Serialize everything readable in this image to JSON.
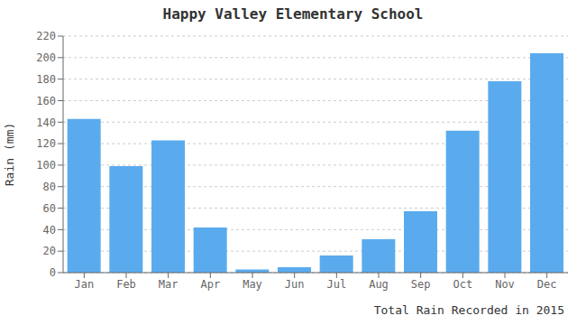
{
  "chart_data": {
    "type": "bar",
    "title": "Happy Valley Elementary School",
    "xlabel": "Total Rain Recorded in 2015",
    "ylabel": "Rain (mm)",
    "categories": [
      "Jan",
      "Feb",
      "Mar",
      "Apr",
      "May",
      "Jun",
      "Jul",
      "Aug",
      "Sep",
      "Oct",
      "Nov",
      "Dec"
    ],
    "values": [
      143,
      99,
      123,
      42,
      3,
      5,
      16,
      31,
      57,
      132,
      178,
      204
    ],
    "color": "#5aabee",
    "ylim": [
      0,
      220
    ],
    "yticks": [
      0,
      20,
      40,
      60,
      80,
      100,
      120,
      140,
      160,
      180,
      200,
      220
    ],
    "grid": true
  }
}
